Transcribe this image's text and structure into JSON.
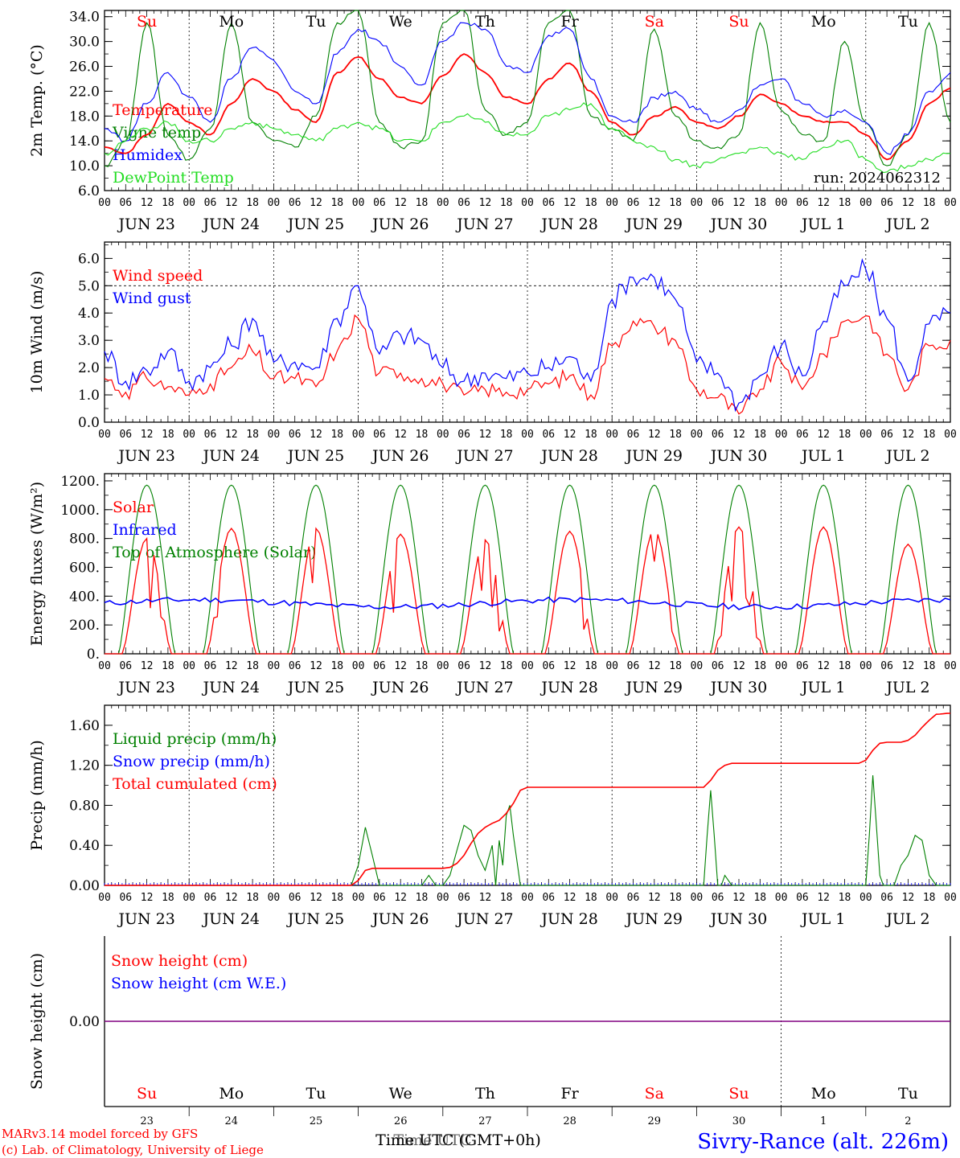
{
  "colors": {
    "red": "#ff0000",
    "green": "#008000",
    "blue": "#0000ff",
    "lightgreen": "#22dd22",
    "purple": "#800080"
  },
  "days": {
    "top": [
      "Su",
      "Mo",
      "Tu",
      "We",
      "Th",
      "Fr",
      "Sa",
      "Su",
      "Mo",
      "Tu"
    ],
    "top_colors": [
      "red",
      "black",
      "black",
      "black",
      "black",
      "black",
      "red",
      "red",
      "black",
      "black"
    ],
    "date_labels": [
      "JUN 23",
      "JUN 24",
      "JUN 25",
      "JUN 26",
      "JUN 27",
      "JUN 28",
      "JUN 29",
      "JUN 30",
      "JUL  1",
      "JUL  2"
    ],
    "hour_labels": [
      "00",
      "06",
      "12",
      "18"
    ],
    "end_hour": "00",
    "bottom_nums": [
      "23",
      "24",
      "25",
      "26",
      "27",
      "28",
      "29",
      "30",
      "1",
      "2"
    ]
  },
  "footer": {
    "credit1": "MARv3.14 model forced by GFS",
    "credit2": "(c) Lab. of Climatology, University of Liege",
    "time_a": "Time UTC (GMT+0h)",
    "time_b": "Time UTC",
    "station": "Sivry-Rance (alt. 226m)"
  },
  "chart_data": [
    {
      "type": "line",
      "ylabel": "2m Temp. (°C)",
      "ylim": [
        6,
        35
      ],
      "yticks": [
        "34.0",
        "30.0",
        "26.0",
        "22.0",
        "18.0",
        "14.0",
        "10.0",
        "6.0"
      ],
      "annotation": "run: 2024062312",
      "x_hours": [
        0,
        6,
        12,
        18,
        24,
        30,
        36,
        42,
        48,
        54,
        60,
        66,
        72,
        78,
        84,
        90,
        96,
        102,
        108,
        114,
        120,
        126,
        132,
        138,
        144,
        150,
        156,
        162,
        168,
        174,
        180,
        186,
        192,
        198,
        204,
        210,
        216,
        222,
        228,
        234,
        240
      ],
      "series": [
        {
          "name": "Temperature",
          "color": "red",
          "values": [
            13,
            12,
            15,
            20,
            17,
            15,
            20,
            24,
            22,
            19,
            17,
            25,
            27.5,
            24,
            21,
            20,
            24.5,
            28,
            25,
            21,
            20,
            24,
            26.5,
            22,
            17,
            15,
            18,
            19.5,
            17,
            16,
            18,
            21.5,
            20,
            18,
            17,
            17,
            15,
            11,
            14,
            20,
            22.5
          ]
        },
        {
          "name": "Vigne temp",
          "color": "green",
          "values": [
            10,
            14,
            33,
            15,
            11,
            16,
            33,
            17,
            14,
            13,
            18,
            33,
            35,
            17,
            13,
            14,
            33,
            35,
            19,
            15,
            17,
            33,
            35,
            18,
            16,
            14,
            32,
            18,
            14,
            13,
            15,
            33,
            19,
            15,
            14,
            30,
            17,
            10,
            15,
            33,
            17
          ]
        },
        {
          "name": "Humidex",
          "color": "blue",
          "values": [
            16,
            14,
            20,
            25,
            21,
            17,
            24,
            29,
            27,
            22,
            20,
            28,
            32,
            30,
            26,
            23,
            30,
            33,
            32,
            26,
            25,
            31,
            32,
            24,
            18,
            17,
            21,
            22,
            19,
            17,
            19,
            23,
            24,
            20,
            18,
            19,
            17,
            12,
            15,
            22,
            25
          ]
        },
        {
          "name": "DewPoint Temp",
          "color": "lightgreen",
          "values": [
            12,
            14,
            16,
            17,
            14,
            14,
            16,
            17,
            16,
            15,
            14,
            16,
            17,
            16,
            14,
            14,
            17,
            18,
            17,
            15,
            15,
            18,
            19,
            20,
            16,
            14,
            13,
            11,
            10,
            11,
            12,
            13,
            12,
            11,
            13,
            14,
            11,
            9,
            10,
            11,
            12
          ]
        }
      ]
    },
    {
      "type": "line",
      "ylabel": "10m Wind (m/s)",
      "ylim": [
        0,
        6.6
      ],
      "yticks": [
        "6.0",
        "5.0",
        "4.0",
        "3.0",
        "2.0",
        "1.0",
        "0.0"
      ],
      "reference_line": 5.0,
      "x_hours": [
        0,
        6,
        12,
        18,
        24,
        30,
        36,
        42,
        48,
        54,
        60,
        66,
        72,
        78,
        84,
        90,
        96,
        102,
        108,
        114,
        120,
        126,
        132,
        138,
        144,
        150,
        156,
        162,
        168,
        174,
        180,
        186,
        192,
        198,
        204,
        210,
        216,
        222,
        228,
        234,
        240
      ],
      "series": [
        {
          "name": "Wind speed",
          "color": "red",
          "values": [
            1.6,
            1.1,
            1.6,
            1.3,
            1.0,
            1.4,
            2.0,
            2.6,
            1.6,
            1.6,
            1.3,
            2.6,
            3.8,
            1.8,
            1.8,
            1.6,
            1.4,
            1.0,
            1.2,
            1.1,
            1.2,
            1.4,
            1.7,
            1.0,
            2.8,
            3.7,
            3.5,
            3.0,
            1.2,
            0.9,
            0.3,
            1.2,
            2.2,
            1.2,
            2.5,
            3.7,
            3.9,
            2.5,
            1.2,
            2.8,
            3.0
          ]
        },
        {
          "name": "Wind gust",
          "color": "blue",
          "values": [
            2.6,
            1.5,
            1.9,
            2.6,
            1.5,
            2.0,
            2.8,
            3.8,
            2.2,
            2.2,
            2.0,
            3.8,
            5.0,
            2.5,
            3.2,
            3.0,
            2.0,
            1.5,
            1.8,
            1.6,
            1.8,
            2.0,
            2.4,
            1.5,
            4.5,
            5.3,
            5.3,
            4.5,
            2.2,
            1.8,
            0.7,
            1.7,
            2.8,
            1.7,
            3.7,
            5.0,
            5.6,
            3.8,
            1.5,
            3.6,
            4.0
          ]
        }
      ]
    },
    {
      "type": "line",
      "ylabel": "Energy fluxes (W/m²)",
      "ylim": [
        0,
        1250
      ],
      "yticks": [
        "1200.",
        "1000.",
        "800.",
        "600.",
        "400.",
        "200.",
        "0."
      ],
      "solar_peaks": [
        800,
        870,
        870,
        830,
        790,
        850,
        860,
        880,
        880,
        760
      ],
      "toa_peak": 1170,
      "infrared_level": 350,
      "series": [
        {
          "name": "Solar",
          "color": "red"
        },
        {
          "name": "Infrared",
          "color": "blue"
        },
        {
          "name": "Top of Atmosphere (Solar)",
          "color": "green"
        }
      ]
    },
    {
      "type": "line",
      "ylabel": "Precip (mm/h)",
      "ylim": [
        0,
        1.8
      ],
      "yticks": [
        "1.60",
        "1.20",
        "0.80",
        "0.40",
        "0.00"
      ],
      "series": [
        {
          "name": "Liquid precip (mm/h)",
          "color": "green",
          "x_hours": [
            0,
            48,
            70,
            72,
            74,
            76,
            78,
            80,
            90,
            92,
            94,
            96,
            98,
            100,
            102,
            104,
            106,
            108,
            110,
            111,
            112,
            113,
            114,
            115,
            116,
            118,
            120,
            122,
            124,
            126,
            128,
            130,
            170,
            171,
            172,
            173,
            174,
            175,
            176,
            178,
            180,
            216,
            217,
            218,
            219,
            220,
            221,
            222,
            224,
            226,
            228,
            230,
            232,
            234,
            236,
            240
          ],
          "values": [
            0,
            0,
            0,
            0.2,
            0.58,
            0.3,
            0,
            0,
            0,
            0.1,
            0,
            0,
            0.1,
            0.35,
            0.6,
            0.55,
            0.3,
            0.15,
            0.4,
            0,
            0.45,
            0.2,
            0.7,
            0.8,
            0.5,
            0,
            0,
            0,
            0,
            0,
            0,
            0,
            0,
            0.5,
            0.95,
            0.5,
            0,
            0,
            0.1,
            0,
            0,
            0,
            0.5,
            1.1,
            0.6,
            0.1,
            0,
            0,
            0,
            0.2,
            0.3,
            0.5,
            0.45,
            0.1,
            0,
            0
          ]
        },
        {
          "name": "Snow precip (mm/h)",
          "color": "blue",
          "values": []
        },
        {
          "name": "Total cumulated (cm)",
          "color": "red",
          "x_hours": [
            0,
            40,
            70,
            72,
            74,
            76,
            78,
            96,
            98,
            100,
            102,
            104,
            106,
            108,
            110,
            112,
            114,
            116,
            118,
            120,
            168,
            170,
            172,
            174,
            176,
            178,
            180,
            214,
            216,
            218,
            220,
            222,
            224,
            226,
            228,
            230,
            232,
            234,
            236,
            240
          ],
          "values": [
            0,
            0,
            0,
            0.05,
            0.15,
            0.17,
            0.17,
            0.17,
            0.18,
            0.22,
            0.3,
            0.42,
            0.52,
            0.58,
            0.62,
            0.65,
            0.72,
            0.82,
            0.95,
            0.98,
            0.98,
            0.98,
            1.05,
            1.15,
            1.2,
            1.22,
            1.22,
            1.22,
            1.25,
            1.35,
            1.42,
            1.43,
            1.43,
            1.43,
            1.45,
            1.5,
            1.58,
            1.65,
            1.71,
            1.72
          ]
        }
      ]
    },
    {
      "type": "line",
      "ylabel": "Snow height (cm)",
      "yticks": [
        "0.00"
      ],
      "series": [
        {
          "name": "Snow height (cm)",
          "color": "red",
          "values": [
            0,
            0
          ]
        },
        {
          "name": "Snow height (cm W.E.)",
          "color": "blue",
          "values": [
            0,
            0
          ]
        }
      ]
    }
  ]
}
